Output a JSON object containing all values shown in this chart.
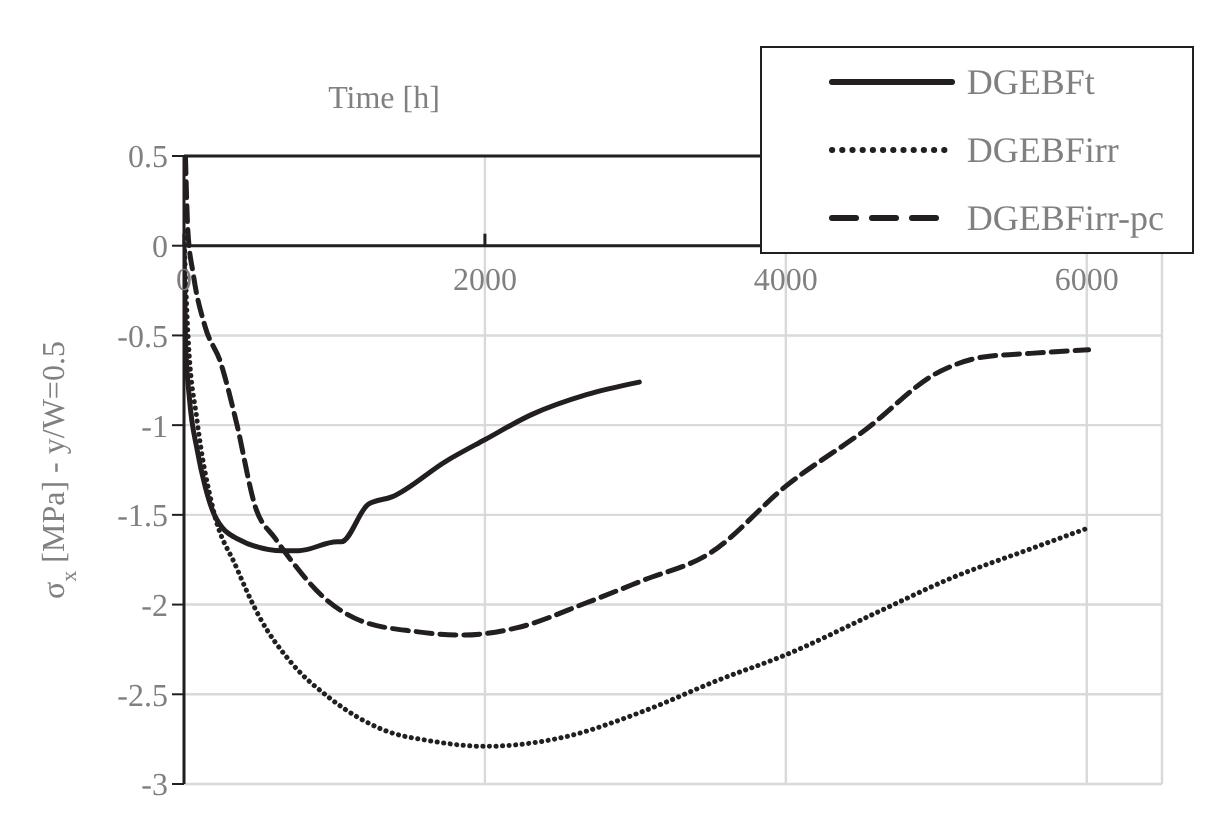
{
  "chart_data": {
    "type": "line",
    "xlabel": "Time [h]",
    "ylabel": "σ$_{x}$ [MPa] - y/W=0.5",
    "xlim": [
      0,
      6500
    ],
    "xticks": [
      0,
      2000,
      4000,
      6000
    ],
    "ylim": [
      -3,
      0.5
    ],
    "yticks": [
      -3,
      -2.5,
      -2,
      -1.5,
      -1,
      -0.5,
      0,
      0.5
    ],
    "grid": true,
    "legend": "top right",
    "marker": "none",
    "series": [
      {
        "name": "DGEBFt",
        "color": "#231f20",
        "line_style": "solid",
        "x": [
          0,
          10,
          36,
          88,
          140,
          202,
          347,
          657,
          760,
          1019,
          1045,
          1226,
          1381,
          1743,
          2002,
          2313,
          2675,
          3026
        ],
        "values": [
          0,
          -0.53,
          -0.85,
          -1.14,
          -1.34,
          -1.5,
          -1.63,
          -1.7,
          -1.7,
          -1.65,
          -1.65,
          -1.44,
          -1.4,
          -1.2,
          -1.08,
          -0.94,
          -0.83,
          -0.76
        ]
      },
      {
        "name": "DGEBFirr",
        "color": "#231f20",
        "line_style": "dotted",
        "x": [
          0,
          26,
          88,
          191,
          347,
          502,
          709,
          967,
          1330,
          1640,
          2002,
          2519,
          3036,
          3554,
          4000,
          4590,
          5107,
          5625,
          5987
        ],
        "values": [
          0.08,
          -0.49,
          -0.98,
          -1.46,
          -1.79,
          -2.07,
          -2.32,
          -2.52,
          -2.7,
          -2.76,
          -2.79,
          -2.74,
          -2.6,
          -2.42,
          -2.28,
          -2.05,
          -1.85,
          -1.69,
          -1.58
        ]
      },
      {
        "name": "DGEBFirr-pc",
        "color": "#231f20",
        "line_style": "dashed",
        "x": [
          10,
          26,
          62,
          140,
          243,
          347,
          476,
          605,
          709,
          916,
          1174,
          1536,
          1846,
          2209,
          2675,
          3036,
          3502,
          4000,
          4538,
          5003,
          5314,
          5625,
          6012
        ],
        "values": [
          0.49,
          0.08,
          -0.16,
          -0.45,
          -0.65,
          -0.98,
          -1.46,
          -1.63,
          -1.75,
          -1.95,
          -2.09,
          -2.15,
          -2.17,
          -2.13,
          -1.99,
          -1.87,
          -1.71,
          -1.34,
          -1.02,
          -0.71,
          -0.62,
          -0.6,
          -0.58
        ]
      }
    ]
  }
}
